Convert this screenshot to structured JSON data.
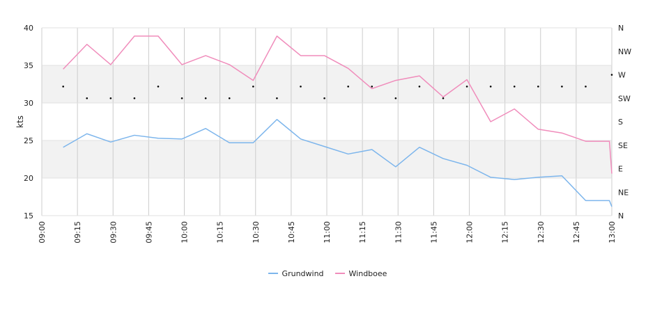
{
  "chart_data": {
    "type": "line",
    "ylabel": "kts",
    "ylim": [
      15,
      40
    ],
    "yticks": [
      15,
      20,
      25,
      30,
      35,
      40
    ],
    "xlim": [
      "09:00",
      "13:00"
    ],
    "xticks": [
      "09:00",
      "09:15",
      "09:30",
      "09:45",
      "10:00",
      "10:15",
      "10:30",
      "10:45",
      "11:00",
      "11:15",
      "11:30",
      "11:45",
      "12:00",
      "12:15",
      "12:30",
      "12:45",
      "13:00"
    ],
    "bands": [
      [
        20,
        25
      ],
      [
        30,
        35
      ]
    ],
    "grid": true,
    "legend": "bottom-center",
    "series": [
      {
        "name": "Grundwind",
        "color": "#7cb5ec",
        "x": [
          "09:09",
          "09:19",
          "09:29",
          "09:39",
          "09:49",
          "09:59",
          "10:09",
          "10:19",
          "10:29",
          "10:39",
          "10:49",
          "10:59",
          "11:09",
          "11:19",
          "11:29",
          "11:39",
          "11:49",
          "11:59",
          "12:09",
          "12:19",
          "12:29",
          "12:39",
          "12:49",
          "12:59",
          "13:00"
        ],
        "values": [
          24.1,
          25.9,
          24.8,
          25.7,
          25.3,
          25.2,
          26.6,
          24.7,
          24.7,
          27.8,
          25.2,
          24.2,
          23.2,
          23.8,
          21.5,
          24.1,
          22.6,
          21.7,
          20.1,
          19.8,
          20.1,
          20.3,
          17.0,
          17.0,
          16.2
        ]
      },
      {
        "name": "Windboee",
        "color": "#f08cbb",
        "x": [
          "09:09",
          "09:19",
          "09:29",
          "09:39",
          "09:49",
          "09:59",
          "10:09",
          "10:19",
          "10:29",
          "10:39",
          "10:49",
          "10:59",
          "11:09",
          "11:19",
          "11:29",
          "11:39",
          "11:49",
          "11:59",
          "12:09",
          "12:19",
          "12:29",
          "12:39",
          "12:49",
          "12:59",
          "13:00"
        ],
        "values": [
          34.5,
          37.8,
          35.1,
          38.9,
          38.9,
          35.1,
          36.3,
          35.1,
          33.0,
          38.9,
          36.3,
          36.3,
          34.6,
          31.9,
          33.0,
          33.6,
          30.8,
          33.1,
          27.5,
          29.2,
          26.5,
          26.0,
          24.9,
          24.9,
          20.6
        ]
      }
    ],
    "direction_axis": {
      "labels": [
        "N",
        "NE",
        "E",
        "SE",
        "S",
        "SW",
        "W",
        "NW",
        "N"
      ],
      "x": [
        "09:09",
        "09:19",
        "09:29",
        "09:39",
        "09:49",
        "09:59",
        "10:09",
        "10:19",
        "10:29",
        "10:39",
        "10:49",
        "10:59",
        "11:09",
        "11:19",
        "11:29",
        "11:39",
        "11:49",
        "11:59",
        "12:09",
        "12:19",
        "12:29",
        "12:39",
        "12:49",
        "13:00"
      ],
      "values": [
        "WSW",
        "SW",
        "SW",
        "SW",
        "WSW",
        "SW",
        "SW",
        "SW",
        "WSW",
        "SW",
        "WSW",
        "SW",
        "WSW",
        "WSW",
        "SW",
        "WSW",
        "SW",
        "WSW",
        "WSW",
        "WSW",
        "WSW",
        "WSW",
        "WSW",
        "W"
      ]
    }
  }
}
